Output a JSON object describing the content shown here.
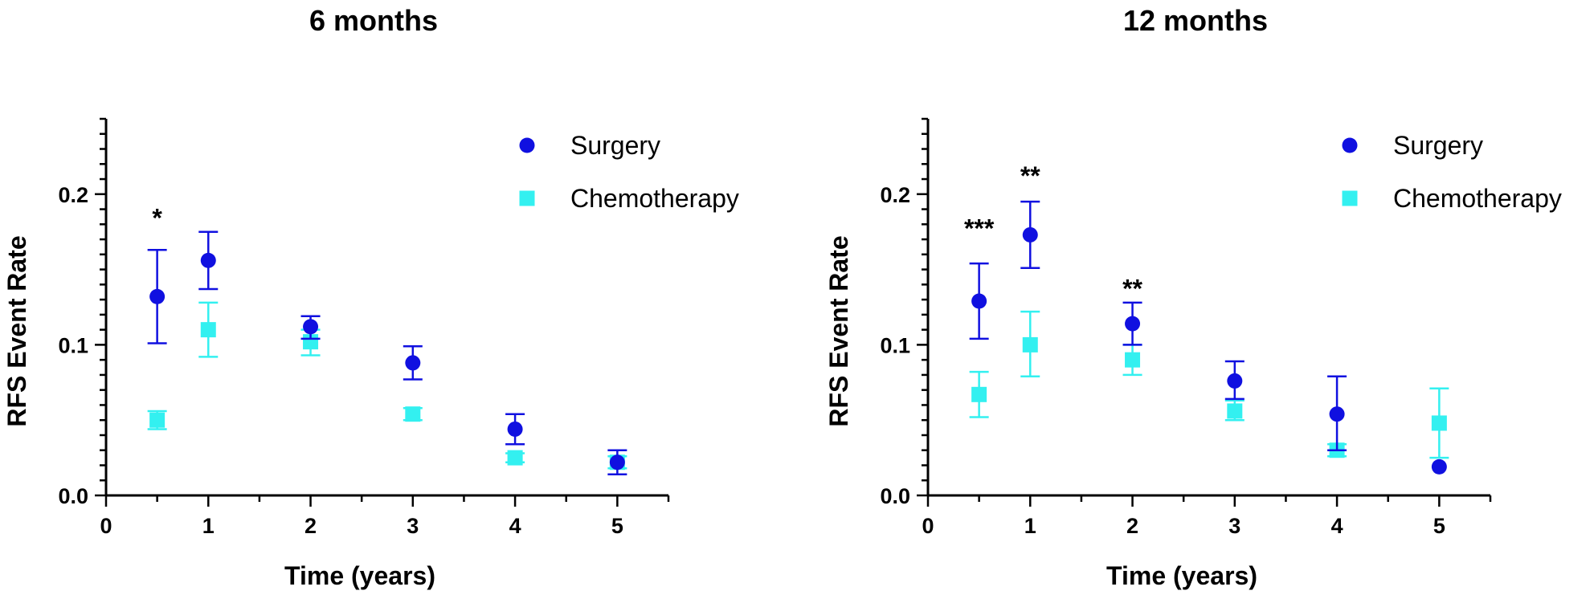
{
  "colors": {
    "surgery": "#1010E0",
    "chemotherapy": "#33F0F0",
    "axis": "#000000"
  },
  "chart_data": [
    {
      "type": "scatter",
      "title": "6 months",
      "xlabel": "Time (years)",
      "ylabel": "RFS Event Rate",
      "xlim": [
        0,
        5.5
      ],
      "ylim": [
        0,
        0.25
      ],
      "x_ticks": [
        "0",
        "1",
        "2",
        "3",
        "4",
        "5"
      ],
      "y_ticks": [
        "0.0",
        "0.1",
        "0.2"
      ],
      "legend": [
        "Surgery",
        "Chemotherapy"
      ],
      "legend_position": "top-right",
      "series": [
        {
          "name": "Surgery",
          "color": "#1010E0",
          "marker": "circle",
          "points": [
            {
              "x": 0.5,
              "y": 0.132,
              "lo": 0.101,
              "hi": 0.163
            },
            {
              "x": 1,
              "y": 0.156,
              "lo": 0.137,
              "hi": 0.175
            },
            {
              "x": 2,
              "y": 0.112,
              "lo": 0.104,
              "hi": 0.119
            },
            {
              "x": 3,
              "y": 0.088,
              "lo": 0.077,
              "hi": 0.099
            },
            {
              "x": 4,
              "y": 0.044,
              "lo": 0.034,
              "hi": 0.054
            },
            {
              "x": 5,
              "y": 0.022,
              "lo": 0.014,
              "hi": 0.03
            }
          ]
        },
        {
          "name": "Chemotherapy",
          "color": "#33F0F0",
          "marker": "square",
          "points": [
            {
              "x": 0.5,
              "y": 0.05,
              "lo": 0.044,
              "hi": 0.056
            },
            {
              "x": 1,
              "y": 0.11,
              "lo": 0.092,
              "hi": 0.128
            },
            {
              "x": 2,
              "y": 0.102,
              "lo": 0.093,
              "hi": 0.11
            },
            {
              "x": 3,
              "y": 0.054,
              "lo": 0.05,
              "hi": 0.058
            },
            {
              "x": 4,
              "y": 0.025,
              "lo": 0.022,
              "hi": 0.028
            },
            {
              "x": 5,
              "y": 0.022,
              "lo": 0.018,
              "hi": 0.026
            }
          ]
        }
      ],
      "annotations": [
        {
          "x": 0.5,
          "y": 0.19,
          "text": "*"
        }
      ]
    },
    {
      "type": "scatter",
      "title": "12 months",
      "xlabel": "Time (years)",
      "ylabel": "RFS Event Rate",
      "xlim": [
        0,
        5.5
      ],
      "ylim": [
        0,
        0.25
      ],
      "x_ticks": [
        "0",
        "1",
        "2",
        "3",
        "4",
        "5"
      ],
      "y_ticks": [
        "0.0",
        "0.1",
        "0.2"
      ],
      "legend": [
        "Surgery",
        "Chemotherapy"
      ],
      "legend_position": "top-right",
      "series": [
        {
          "name": "Surgery",
          "color": "#1010E0",
          "marker": "circle",
          "points": [
            {
              "x": 0.5,
              "y": 0.129,
              "lo": 0.104,
              "hi": 0.154
            },
            {
              "x": 1,
              "y": 0.173,
              "lo": 0.151,
              "hi": 0.195
            },
            {
              "x": 2,
              "y": 0.114,
              "lo": 0.1,
              "hi": 0.128
            },
            {
              "x": 3,
              "y": 0.076,
              "lo": 0.064,
              "hi": 0.089
            },
            {
              "x": 4,
              "y": 0.054,
              "lo": 0.03,
              "hi": 0.079
            },
            {
              "x": 5,
              "y": 0.019,
              "lo": 0.019,
              "hi": 0.019
            }
          ]
        },
        {
          "name": "Chemotherapy",
          "color": "#33F0F0",
          "marker": "square",
          "points": [
            {
              "x": 0.5,
              "y": 0.067,
              "lo": 0.052,
              "hi": 0.082
            },
            {
              "x": 1,
              "y": 0.1,
              "lo": 0.079,
              "hi": 0.122
            },
            {
              "x": 2,
              "y": 0.09,
              "lo": 0.08,
              "hi": 0.1
            },
            {
              "x": 3,
              "y": 0.056,
              "lo": 0.05,
              "hi": 0.063
            },
            {
              "x": 4,
              "y": 0.03,
              "lo": 0.026,
              "hi": 0.034
            },
            {
              "x": 5,
              "y": 0.048,
              "lo": 0.025,
              "hi": 0.071
            }
          ]
        }
      ],
      "annotations": [
        {
          "x": 0.5,
          "y": 0.183,
          "text": "***"
        },
        {
          "x": 1,
          "y": 0.218,
          "text": "**"
        },
        {
          "x": 2,
          "y": 0.143,
          "text": "**"
        }
      ]
    }
  ]
}
